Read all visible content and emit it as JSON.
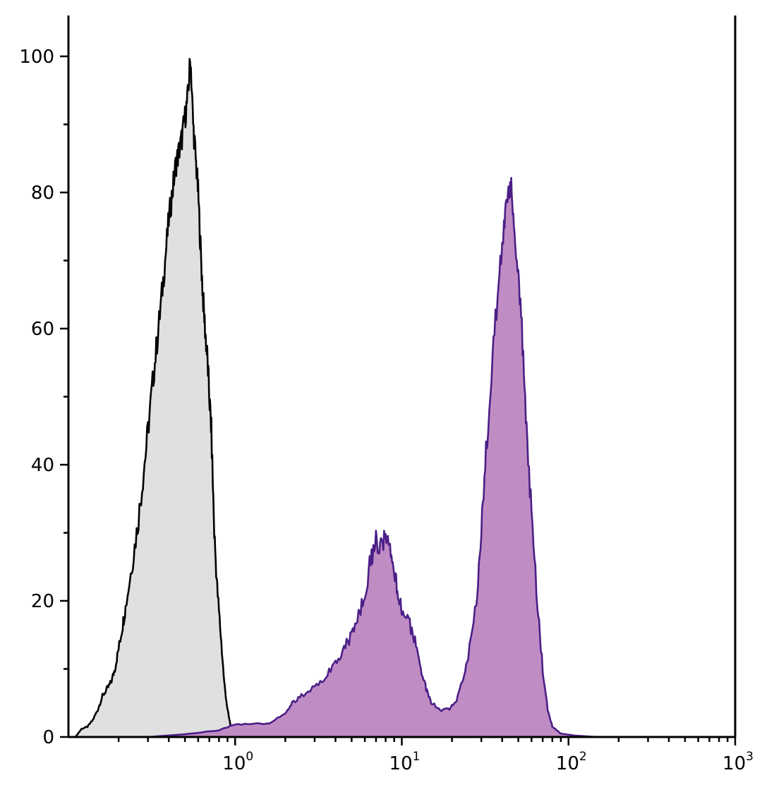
{
  "chart_data": {
    "type": "area",
    "title": "",
    "xlabel": "",
    "ylabel": "",
    "xscale": "log",
    "xlim": [
      0.1,
      1000
    ],
    "ylim": [
      0,
      106
    ],
    "grid": false,
    "legend": "none",
    "x_ticks": [
      {
        "base": "10",
        "exp": "0",
        "value": 1
      },
      {
        "base": "10",
        "exp": "1",
        "value": 10
      },
      {
        "base": "10",
        "exp": "2",
        "value": 100
      },
      {
        "base": "10",
        "exp": "3",
        "value": 1000
      }
    ],
    "y_ticks": [
      "0",
      "20",
      "40",
      "60",
      "80",
      "100"
    ],
    "y_tick_values": [
      0,
      20,
      40,
      60,
      80,
      100
    ],
    "series": [
      {
        "color": "#000000",
        "fill": "#e0e0e0",
        "points": [
          [
            0.11,
            0
          ],
          [
            0.12,
            1.2
          ],
          [
            0.13,
            1.5
          ],
          [
            0.14,
            2.5
          ],
          [
            0.15,
            4
          ],
          [
            0.16,
            6
          ],
          [
            0.17,
            7
          ],
          [
            0.18,
            8
          ],
          [
            0.19,
            10
          ],
          [
            0.2,
            13
          ],
          [
            0.21,
            16
          ],
          [
            0.22,
            19
          ],
          [
            0.24,
            25
          ],
          [
            0.26,
            31
          ],
          [
            0.28,
            38
          ],
          [
            0.3,
            45
          ],
          [
            0.32,
            52
          ],
          [
            0.34,
            58
          ],
          [
            0.36,
            64
          ],
          [
            0.38,
            70
          ],
          [
            0.4,
            76
          ],
          [
            0.42,
            80
          ],
          [
            0.44,
            84
          ],
          [
            0.46,
            86
          ],
          [
            0.48,
            88
          ],
          [
            0.5,
            91
          ],
          [
            0.52,
            94
          ],
          [
            0.54,
            100
          ],
          [
            0.56,
            90
          ],
          [
            0.58,
            85
          ],
          [
            0.6,
            80
          ],
          [
            0.62,
            72
          ],
          [
            0.64,
            65
          ],
          [
            0.66,
            60
          ],
          [
            0.68,
            56
          ],
          [
            0.7,
            50
          ],
          [
            0.72,
            45
          ],
          [
            0.75,
            30
          ],
          [
            0.78,
            22
          ],
          [
            0.82,
            15
          ],
          [
            0.86,
            8
          ],
          [
            0.9,
            4
          ],
          [
            0.95,
            1
          ],
          [
            1.0,
            0
          ]
        ]
      },
      {
        "color": "#4b1f87",
        "fill": "#c08cc4",
        "points": [
          [
            0.3,
            0
          ],
          [
            0.5,
            0.4
          ],
          [
            0.8,
            1
          ],
          [
            1.0,
            1.8
          ],
          [
            1.3,
            2
          ],
          [
            1.6,
            2
          ],
          [
            2.0,
            3.5
          ],
          [
            2.2,
            5
          ],
          [
            2.5,
            6
          ],
          [
            3.0,
            7.5
          ],
          [
            3.5,
            9
          ],
          [
            4.0,
            11
          ],
          [
            4.5,
            13
          ],
          [
            5.0,
            15
          ],
          [
            5.5,
            18
          ],
          [
            6.0,
            21
          ],
          [
            6.5,
            26
          ],
          [
            7.0,
            29
          ],
          [
            7.5,
            28
          ],
          [
            8.0,
            29
          ],
          [
            8.5,
            27
          ],
          [
            9.0,
            24
          ],
          [
            9.5,
            21
          ],
          [
            10.0,
            19
          ],
          [
            11.0,
            17
          ],
          [
            12.0,
            14
          ],
          [
            13.0,
            10
          ],
          [
            14.0,
            7
          ],
          [
            15.0,
            5
          ],
          [
            17.0,
            4
          ],
          [
            19.0,
            4
          ],
          [
            21.0,
            5
          ],
          [
            23.0,
            8
          ],
          [
            25.0,
            12
          ],
          [
            28.0,
            20
          ],
          [
            30.0,
            30
          ],
          [
            32.0,
            42
          ],
          [
            35.0,
            55
          ],
          [
            38.0,
            67
          ],
          [
            41.0,
            75
          ],
          [
            43.0,
            80
          ],
          [
            45.0,
            81
          ],
          [
            47.0,
            76
          ],
          [
            50.0,
            68
          ],
          [
            53.0,
            58
          ],
          [
            56.0,
            45
          ],
          [
            60.0,
            33
          ],
          [
            65.0,
            20
          ],
          [
            70.0,
            10
          ],
          [
            75.0,
            4
          ],
          [
            80.0,
            1.5
          ],
          [
            90.0,
            0.5
          ],
          [
            110.0,
            0.2
          ],
          [
            150.0,
            0
          ]
        ]
      }
    ]
  }
}
